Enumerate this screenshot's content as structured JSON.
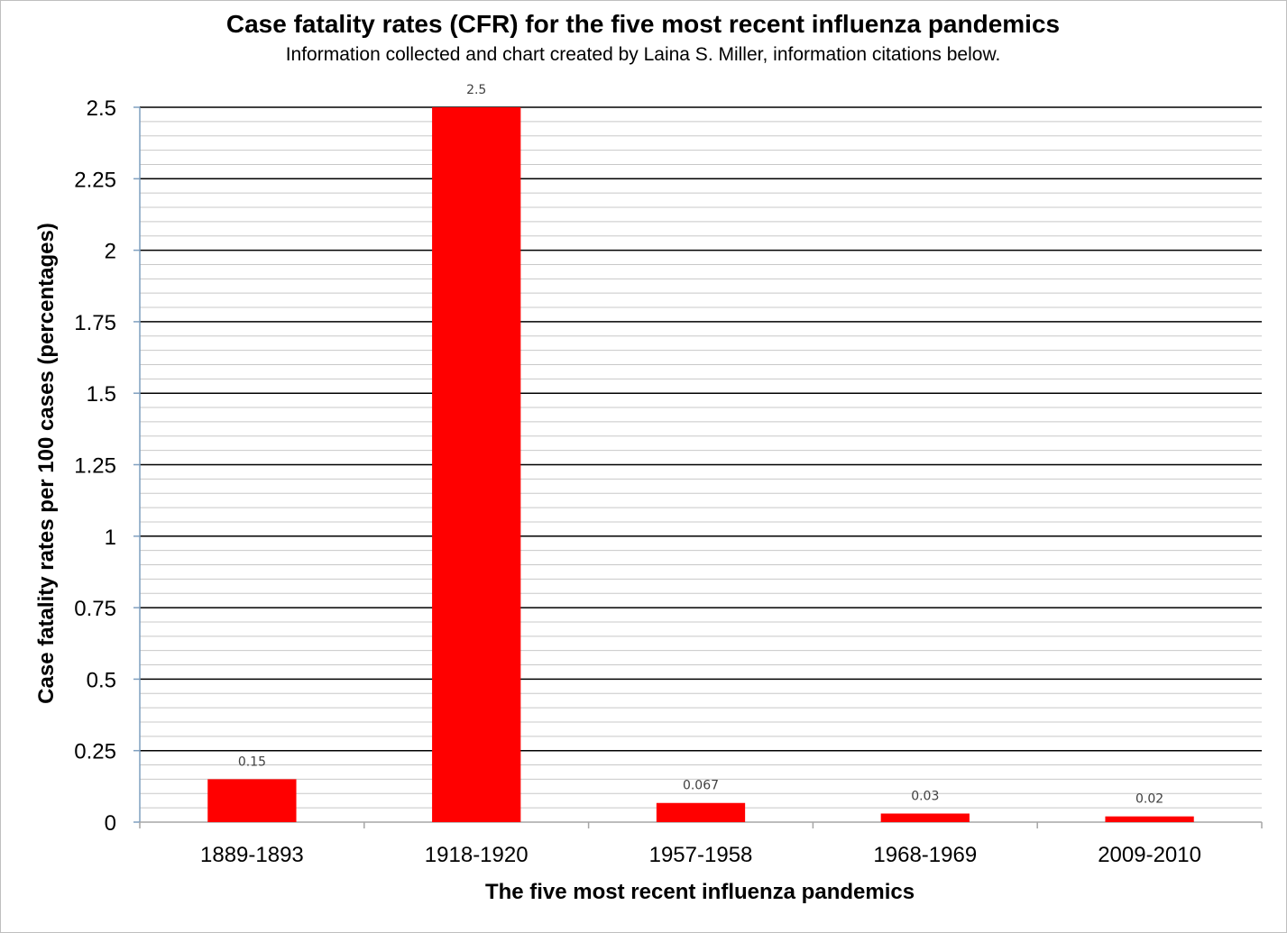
{
  "chart_data": {
    "type": "bar",
    "title": "Case fatality rates (CFR) for the five most recent influenza pandemics",
    "subtitle": "Information collected and chart created by Laina S. Miller, information citations below.",
    "xlabel": "The five most recent influenza pandemics",
    "ylabel": "Case fatality rates per 100 cases (percentages)",
    "categories": [
      "1889-1893",
      "1918-1920",
      "1957-1958",
      "1968-1969",
      "2009-2010"
    ],
    "values": [
      0.15,
      2.5,
      0.067,
      0.03,
      0.02
    ],
    "data_labels": [
      "0.15",
      "2.5",
      "0.067",
      "0.03",
      "0.02"
    ],
    "ylim": [
      0,
      2.5
    ],
    "yticks": [
      0,
      0.25,
      0.5,
      0.75,
      1,
      1.25,
      1.5,
      1.75,
      2,
      2.25,
      2.5
    ],
    "ytick_labels": [
      "0",
      "0.25",
      "0.5",
      "0.75",
      "1",
      "1.25",
      "1.5",
      "1.75",
      "2",
      "2.25",
      "2.5"
    ],
    "minor_step": 0.05,
    "grid": true,
    "legend": "none",
    "colors": {
      "bar": "#ff0000",
      "major_grid": "#000000",
      "minor_grid": "#c8c8c8",
      "y_axis": "#7f9fbf",
      "x_axis": "#a6a6a6"
    }
  }
}
